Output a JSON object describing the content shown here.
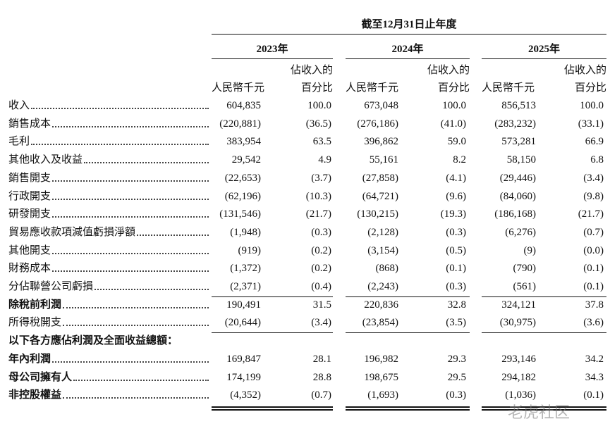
{
  "header": {
    "period": "截至12月31日止年度",
    "years": [
      "2023年",
      "2024年",
      "2025年"
    ],
    "amount_header": "人民幣千元",
    "pct_header_lines": [
      "佔收入的",
      "百分比"
    ]
  },
  "table": {
    "rows": [
      {
        "label": "收入",
        "values": [
          "604,835",
          "100.0",
          "673,048",
          "100.0",
          "856,513",
          "100.0"
        ]
      },
      {
        "label": "銷售成本",
        "values": [
          "(220,881)",
          "(36.5)",
          "(276,186)",
          "(41.0)",
          "(283,232)",
          "(33.1)"
        ]
      },
      {
        "label": "毛利",
        "values": [
          "383,954",
          "63.5",
          "396,862",
          "59.0",
          "573,281",
          "66.9"
        ]
      },
      {
        "label": "其他收入及收益",
        "values": [
          "29,542",
          "4.9",
          "55,161",
          "8.2",
          "58,150",
          "6.8"
        ]
      },
      {
        "label": "銷售開支",
        "values": [
          "(22,653)",
          "(3.7)",
          "(27,858)",
          "(4.1)",
          "(29,446)",
          "(3.4)"
        ]
      },
      {
        "label": "行政開支",
        "values": [
          "(62,196)",
          "(10.3)",
          "(64,721)",
          "(9.6)",
          "(84,060)",
          "(9.8)"
        ]
      },
      {
        "label": "研發開支",
        "values": [
          "(131,546)",
          "(21.7)",
          "(130,215)",
          "(19.3)",
          "(186,168)",
          "(21.7)"
        ]
      },
      {
        "label": "貿易應收款項減值虧損淨額",
        "values": [
          "(1,948)",
          "(0.3)",
          "(2,128)",
          "(0.3)",
          "(6,276)",
          "(0.7)"
        ]
      },
      {
        "label": "其他開支",
        "values": [
          "(919)",
          "(0.2)",
          "(3,154)",
          "(0.5)",
          "(9)",
          "(0.0)"
        ]
      },
      {
        "label": "財務成本",
        "values": [
          "(1,372)",
          "(0.2)",
          "(868)",
          "(0.1)",
          "(790)",
          "(0.1)"
        ]
      },
      {
        "label": "分佔聯營公司虧損",
        "values": [
          "(2,371)",
          "(0.4)",
          "(2,243)",
          "(0.3)",
          "(561)",
          "(0.1)"
        ]
      },
      {
        "label": "除稅前利潤",
        "bold": true,
        "values": [
          "190,491",
          "31.5",
          "220,836",
          "32.8",
          "324,121",
          "37.8"
        ]
      },
      {
        "label": "所得稅開支",
        "values": [
          "(20,644)",
          "(3.4)",
          "(23,854)",
          "(3.5)",
          "(30,975)",
          "(3.6)"
        ]
      },
      {
        "label": "以下各方應佔利潤及全面收益總額：",
        "bold": true,
        "section": true
      },
      {
        "label": "年內利潤",
        "bold": true,
        "values": [
          "169,847",
          "28.1",
          "196,982",
          "29.3",
          "293,146",
          "34.2"
        ]
      },
      {
        "label": "母公司擁有人",
        "bold": true,
        "values": [
          "174,199",
          "28.8",
          "198,675",
          "29.5",
          "294,182",
          "34.3"
        ]
      },
      {
        "label": "非控股權益",
        "bold": true,
        "values": [
          "(4,352)",
          "(0.7)",
          "(1,693)",
          "(0.3)",
          "(1,036)",
          "(0.1)"
        ]
      }
    ]
  },
  "watermark": "老虎社区"
}
